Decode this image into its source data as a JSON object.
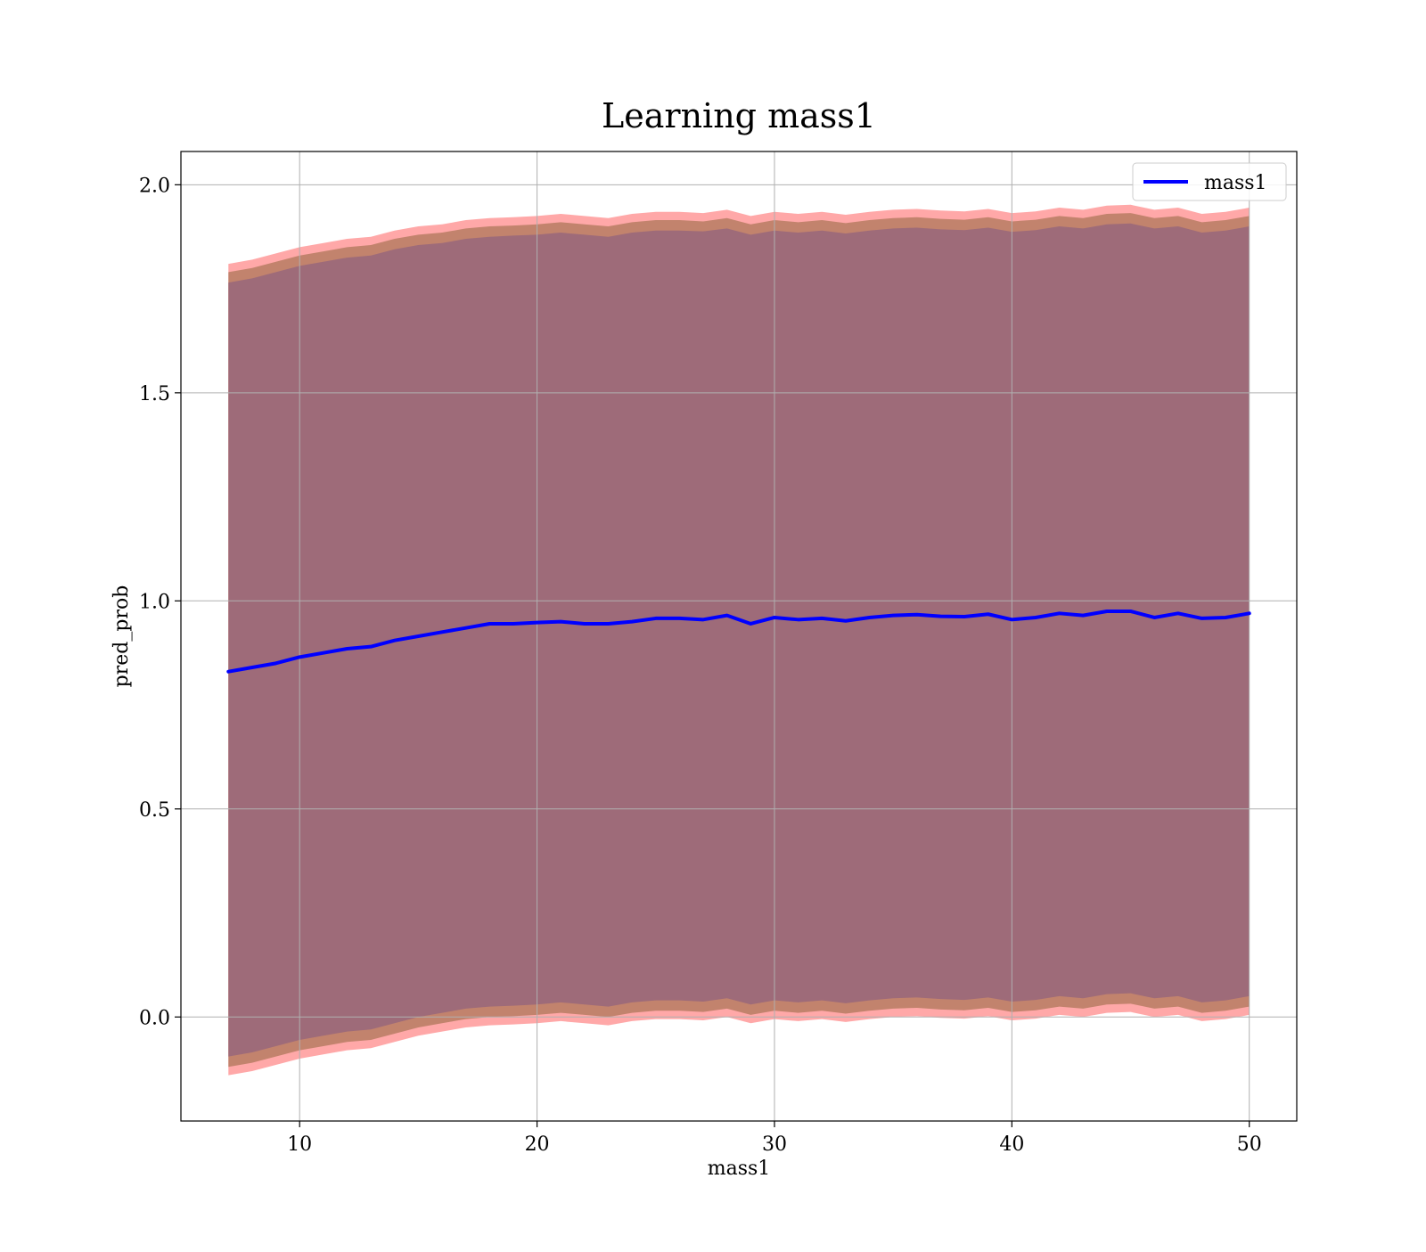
{
  "chart_data": {
    "type": "line",
    "title": "Learning mass1",
    "xlabel": "mass1",
    "ylabel": "pred_prob",
    "xlim": [
      5,
      52
    ],
    "ylim": [
      -0.25,
      2.08
    ],
    "grid": true,
    "legend_position": "top-right",
    "x_ticks": [
      10,
      20,
      30,
      40,
      50
    ],
    "y_ticks": [
      0.0,
      0.5,
      1.0,
      1.5,
      2.0
    ],
    "x_tick_labels": [
      "10",
      "20",
      "30",
      "40",
      "50"
    ],
    "y_tick_labels": [
      "0.0",
      "0.5",
      "1.0",
      "1.5",
      "2.0"
    ],
    "series": [
      {
        "name": "mass1",
        "color": "#0000ff",
        "x": [
          7,
          8,
          9,
          10,
          11,
          12,
          13,
          14,
          15,
          16,
          17,
          18,
          19,
          20,
          21,
          22,
          23,
          24,
          25,
          26,
          27,
          28,
          29,
          30,
          31,
          32,
          33,
          34,
          35,
          36,
          37,
          38,
          39,
          40,
          41,
          42,
          43,
          44,
          45,
          46,
          47,
          48,
          49,
          50
        ],
        "y": [
          0.83,
          0.84,
          0.85,
          0.865,
          0.875,
          0.885,
          0.89,
          0.905,
          0.915,
          0.925,
          0.935,
          0.945,
          0.945,
          0.948,
          0.95,
          0.945,
          0.945,
          0.95,
          0.958,
          0.958,
          0.955,
          0.965,
          0.945,
          0.96,
          0.955,
          0.958,
          0.952,
          0.96,
          0.965,
          0.967,
          0.963,
          0.962,
          0.968,
          0.955,
          0.96,
          0.97,
          0.965,
          0.975,
          0.975,
          0.96,
          0.97,
          0.958,
          0.96,
          0.97
        ]
      }
    ],
    "bands": [
      {
        "color": "#ff9999",
        "opacity": 0.85,
        "upper": [
          1.81,
          1.82,
          1.835,
          1.85,
          1.86,
          1.87,
          1.875,
          1.89,
          1.9,
          1.905,
          1.915,
          1.92,
          1.922,
          1.925,
          1.93,
          1.925,
          1.92,
          1.93,
          1.935,
          1.935,
          1.932,
          1.94,
          1.925,
          1.935,
          1.93,
          1.935,
          1.928,
          1.935,
          1.94,
          1.942,
          1.938,
          1.936,
          1.942,
          1.932,
          1.936,
          1.945,
          1.94,
          1.95,
          1.952,
          1.94,
          1.945,
          1.93,
          1.935,
          1.945
        ],
        "lower": [
          -0.14,
          -0.13,
          -0.115,
          -0.1,
          -0.09,
          -0.08,
          -0.075,
          -0.06,
          -0.045,
          -0.035,
          -0.025,
          -0.02,
          -0.018,
          -0.015,
          -0.01,
          -0.015,
          -0.02,
          -0.01,
          -0.005,
          -0.005,
          -0.008,
          0.0,
          -0.015,
          -0.005,
          -0.01,
          -0.005,
          -0.012,
          -0.005,
          0.0,
          0.002,
          -0.002,
          -0.004,
          0.002,
          -0.008,
          -0.004,
          0.005,
          0.0,
          0.01,
          0.012,
          0.0,
          0.005,
          -0.01,
          -0.005,
          0.005
        ]
      },
      {
        "color": "#b3795e",
        "opacity": 0.8,
        "upper": [
          1.79,
          1.8,
          1.815,
          1.83,
          1.84,
          1.85,
          1.855,
          1.87,
          1.88,
          1.885,
          1.895,
          1.9,
          1.902,
          1.905,
          1.91,
          1.905,
          1.9,
          1.91,
          1.915,
          1.915,
          1.912,
          1.92,
          1.905,
          1.915,
          1.91,
          1.915,
          1.908,
          1.915,
          1.92,
          1.922,
          1.918,
          1.916,
          1.922,
          1.912,
          1.916,
          1.925,
          1.92,
          1.93,
          1.932,
          1.92,
          1.925,
          1.91,
          1.915,
          1.925
        ],
        "lower": [
          -0.12,
          -0.11,
          -0.095,
          -0.08,
          -0.07,
          -0.06,
          -0.055,
          -0.04,
          -0.025,
          -0.015,
          -0.005,
          0.0,
          0.002,
          0.005,
          0.01,
          0.005,
          0.0,
          0.01,
          0.015,
          0.015,
          0.012,
          0.02,
          0.005,
          0.015,
          0.01,
          0.015,
          0.008,
          0.015,
          0.02,
          0.022,
          0.018,
          0.016,
          0.022,
          0.012,
          0.016,
          0.025,
          0.02,
          0.03,
          0.032,
          0.02,
          0.025,
          0.01,
          0.015,
          0.025
        ]
      },
      {
        "color": "#9e6b79",
        "opacity": 1.0,
        "upper": [
          1.765,
          1.775,
          1.79,
          1.805,
          1.815,
          1.825,
          1.83,
          1.845,
          1.855,
          1.86,
          1.87,
          1.875,
          1.878,
          1.88,
          1.885,
          1.88,
          1.875,
          1.885,
          1.89,
          1.89,
          1.888,
          1.895,
          1.88,
          1.89,
          1.885,
          1.89,
          1.883,
          1.89,
          1.895,
          1.897,
          1.893,
          1.891,
          1.897,
          1.887,
          1.891,
          1.9,
          1.895,
          1.905,
          1.907,
          1.895,
          1.9,
          1.885,
          1.89,
          1.9
        ],
        "lower": [
          -0.095,
          -0.085,
          -0.07,
          -0.055,
          -0.045,
          -0.035,
          -0.03,
          -0.015,
          0.0,
          0.01,
          0.02,
          0.025,
          0.027,
          0.03,
          0.035,
          0.03,
          0.025,
          0.035,
          0.04,
          0.04,
          0.037,
          0.045,
          0.03,
          0.04,
          0.035,
          0.04,
          0.033,
          0.04,
          0.045,
          0.047,
          0.043,
          0.041,
          0.047,
          0.037,
          0.041,
          0.05,
          0.045,
          0.055,
          0.057,
          0.045,
          0.05,
          0.035,
          0.04,
          0.05
        ]
      }
    ]
  }
}
